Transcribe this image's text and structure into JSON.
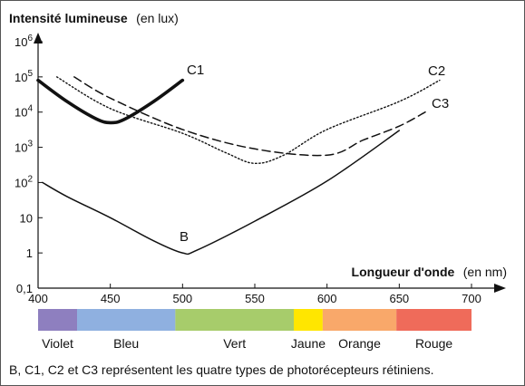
{
  "chart_data": {
    "type": "line",
    "title": "",
    "ylabel": "Intensité lumineuse",
    "ylabel_unit": "(en lux)",
    "xlabel": "Longueur d'onde",
    "xlabel_unit": "(en nm)",
    "x_ticks": [
      "400",
      "450",
      "500",
      "550",
      "600",
      "650",
      "700"
    ],
    "y_ticks": [
      {
        "base": "0,1",
        "exp": ""
      },
      {
        "base": "1",
        "exp": ""
      },
      {
        "base": "10",
        "exp": ""
      },
      {
        "base": "10",
        "exp": "2"
      },
      {
        "base": "10",
        "exp": "3"
      },
      {
        "base": "10",
        "exp": "4"
      },
      {
        "base": "10",
        "exp": "5"
      },
      {
        "base": "10",
        "exp": "6"
      }
    ],
    "xlim": [
      400,
      700
    ],
    "ylim_log10": [
      -1,
      6
    ],
    "y_scale": "log",
    "series": [
      {
        "name": "C1",
        "style": "thick-solid",
        "points": [
          [
            400,
            80000
          ],
          [
            420,
            20000
          ],
          [
            440,
            6500
          ],
          [
            450,
            5000
          ],
          [
            460,
            6300
          ],
          [
            480,
            20000
          ],
          [
            500,
            80000
          ]
        ]
      },
      {
        "name": "C2",
        "style": "dotted",
        "points": [
          [
            413,
            100000
          ],
          [
            450,
            12600
          ],
          [
            500,
            2500
          ],
          [
            530,
            700
          ],
          [
            550,
            350
          ],
          [
            570,
            600
          ],
          [
            600,
            3200
          ],
          [
            650,
            20000
          ],
          [
            678,
            80000
          ]
        ]
      },
      {
        "name": "C3",
        "style": "dashed",
        "points": [
          [
            425,
            100000
          ],
          [
            450,
            25000
          ],
          [
            500,
            3200
          ],
          [
            550,
            900
          ],
          [
            600,
            600
          ],
          [
            625,
            1600
          ],
          [
            650,
            4000
          ],
          [
            668,
            10000
          ]
        ]
      },
      {
        "name": "B",
        "style": "solid",
        "points": [
          [
            403,
            100
          ],
          [
            420,
            40
          ],
          [
            450,
            10
          ],
          [
            480,
            2.2
          ],
          [
            500,
            1
          ],
          [
            510,
            1.2
          ],
          [
            550,
            8
          ],
          [
            600,
            110
          ],
          [
            650,
            3000
          ]
        ]
      }
    ],
    "color_bands": [
      {
        "label": "Violet",
        "from": 400,
        "to": 427,
        "color": "#8e7fbf"
      },
      {
        "label": "Bleu",
        "from": 427,
        "to": 495,
        "color": "#8fb0e0"
      },
      {
        "label": "Vert",
        "from": 495,
        "to": 577,
        "color": "#a7cc6b"
      },
      {
        "label": "Jaune",
        "from": 577,
        "to": 597,
        "color": "#ffe600"
      },
      {
        "label": "Orange",
        "from": 597,
        "to": 648,
        "color": "#f9a86a"
      },
      {
        "label": "Rouge",
        "from": 648,
        "to": 700,
        "color": "#ef6b5a"
      }
    ],
    "grid": false,
    "caption": "B, C1, C2 et C3 représentent les quatre types de photorécepteurs rétiniens."
  }
}
